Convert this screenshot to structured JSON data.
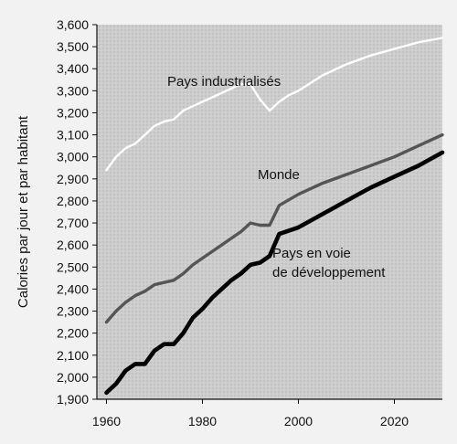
{
  "chart_data": {
    "type": "line",
    "title": "",
    "xlabel": "",
    "ylabel": "Calories par jour et par habitant",
    "xlim": [
      1958,
      2030
    ],
    "ylim": [
      1900,
      3600
    ],
    "xticks": [
      1960,
      1980,
      2000,
      2020
    ],
    "yticks": [
      1900,
      2000,
      2100,
      2200,
      2300,
      2400,
      2500,
      2600,
      2700,
      2800,
      2900,
      3000,
      3100,
      3200,
      3300,
      3400,
      3500,
      3600
    ],
    "y_tick_labels": [
      "1,900",
      "2,000",
      "2,100",
      "2,200",
      "2,300",
      "2,400",
      "2,500",
      "2,600",
      "2,700",
      "2,800",
      "2,900",
      "3,000",
      "3,100",
      "3,200",
      "3,300",
      "3,400",
      "3,500",
      "3,600"
    ],
    "grid": false,
    "legend": "none",
    "annotations": [
      "Pays industrialisés",
      "Monde",
      "Pays en voie",
      "de développement"
    ],
    "series": [
      {
        "name": "Pays industrialisés",
        "color": "#ffffff",
        "x": [
          1960,
          1962,
          1964,
          1966,
          1968,
          1970,
          1972,
          1974,
          1976,
          1978,
          1980,
          1982,
          1984,
          1986,
          1988,
          1990,
          1992,
          1994,
          1996,
          1998,
          2000,
          2005,
          2010,
          2015,
          2020,
          2025,
          2030
        ],
        "y": [
          2940,
          3000,
          3040,
          3060,
          3100,
          3140,
          3160,
          3170,
          3210,
          3230,
          3250,
          3270,
          3290,
          3310,
          3330,
          3330,
          3260,
          3210,
          3250,
          3280,
          3300,
          3370,
          3420,
          3460,
          3490,
          3520,
          3540
        ]
      },
      {
        "name": "Monde",
        "color": "#555555",
        "x": [
          1960,
          1962,
          1964,
          1966,
          1968,
          1970,
          1972,
          1974,
          1976,
          1978,
          1980,
          1982,
          1984,
          1986,
          1988,
          1990,
          1992,
          1994,
          1996,
          2000,
          2005,
          2010,
          2015,
          2020,
          2025,
          2030
        ],
        "y": [
          2250,
          2300,
          2340,
          2370,
          2390,
          2420,
          2430,
          2440,
          2470,
          2510,
          2540,
          2570,
          2600,
          2630,
          2660,
          2700,
          2690,
          2690,
          2780,
          2830,
          2880,
          2920,
          2960,
          3000,
          3050,
          3100
        ]
      },
      {
        "name": "Pays en voie de développement",
        "color": "#000000",
        "x": [
          1960,
          1962,
          1964,
          1966,
          1968,
          1970,
          1972,
          1974,
          1976,
          1978,
          1980,
          1982,
          1984,
          1986,
          1988,
          1990,
          1992,
          1994,
          1996,
          2000,
          2005,
          2010,
          2015,
          2020,
          2025,
          2030
        ],
        "y": [
          1930,
          1970,
          2030,
          2060,
          2060,
          2120,
          2150,
          2150,
          2200,
          2270,
          2310,
          2360,
          2400,
          2440,
          2470,
          2510,
          2520,
          2550,
          2650,
          2680,
          2740,
          2800,
          2860,
          2910,
          2960,
          3020
        ]
      }
    ]
  }
}
